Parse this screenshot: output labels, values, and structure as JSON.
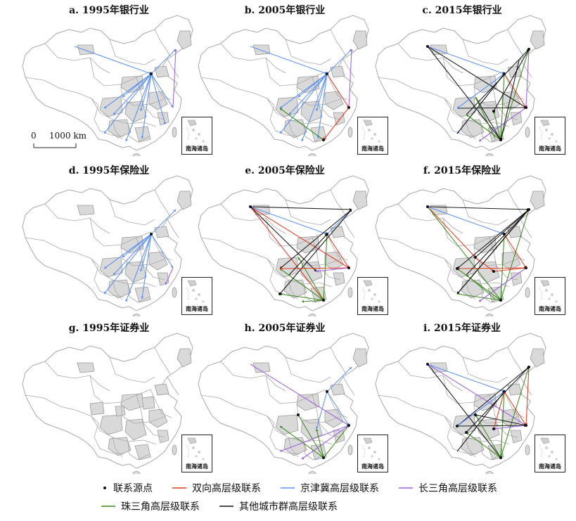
{
  "panels": [
    {
      "title": "a. 1995年银行业",
      "inset_label": "南海诸岛",
      "edges": [
        {
          "type": "beijing",
          "from": "urumqi",
          "to": "beijing"
        },
        {
          "type": "beijing",
          "from": "beijing",
          "to": "harbin"
        },
        {
          "type": "beijing",
          "from": "beijing",
          "to": "shanghai"
        },
        {
          "type": "beijing",
          "from": "beijing",
          "to": "guangzhou"
        },
        {
          "type": "beijing",
          "from": "beijing",
          "to": "chengdu"
        },
        {
          "type": "beijing",
          "from": "beijing",
          "to": "wuhan"
        },
        {
          "type": "beijing",
          "from": "beijing",
          "to": "xian"
        },
        {
          "type": "beijing",
          "from": "beijing",
          "to": "kunming"
        },
        {
          "type": "beijing",
          "from": "beijing",
          "to": "chongqing"
        },
        {
          "type": "beijing",
          "from": "beijing",
          "to": "nanning"
        },
        {
          "type": "beijing",
          "from": "beijing",
          "to": "fuzhou"
        },
        {
          "type": "yangtze",
          "from": "shanghai",
          "to": "harbin"
        }
      ],
      "sources": [
        "beijing"
      ]
    },
    {
      "title": "b. 2005年银行业",
      "inset_label": "南海诸岛",
      "edges": [
        {
          "type": "beijing",
          "from": "urumqi",
          "to": "beijing"
        },
        {
          "type": "beijing",
          "from": "beijing",
          "to": "harbin"
        },
        {
          "type": "bidirectional",
          "from": "beijing",
          "to": "shanghai"
        },
        {
          "type": "beijing",
          "from": "beijing",
          "to": "guangzhou"
        },
        {
          "type": "beijing",
          "from": "beijing",
          "to": "chengdu"
        },
        {
          "type": "beijing",
          "from": "beijing",
          "to": "wuhan"
        },
        {
          "type": "beijing",
          "from": "beijing",
          "to": "kunming"
        },
        {
          "type": "beijing",
          "from": "beijing",
          "to": "chongqing"
        },
        {
          "type": "beijing",
          "from": "beijing",
          "to": "nanning"
        },
        {
          "type": "beijing",
          "from": "beijing",
          "to": "xian"
        },
        {
          "type": "bidirectional",
          "from": "shanghai",
          "to": "shenzhen"
        },
        {
          "type": "pearl",
          "from": "shenzhen",
          "to": "chengdu"
        },
        {
          "type": "yangtze",
          "from": "shanghai",
          "to": "harbin"
        }
      ],
      "sources": [
        "beijing",
        "shanghai",
        "shenzhen"
      ]
    },
    {
      "title": "c. 2015年银行业",
      "inset_label": "南海诸岛",
      "edges": [
        {
          "type": "other",
          "from": "urumqi",
          "to": "shanghai"
        },
        {
          "type": "beijing",
          "from": "urumqi",
          "to": "beijing"
        },
        {
          "type": "other",
          "from": "urumqi",
          "to": "shenzhen"
        },
        {
          "type": "yangtze",
          "from": "harbin",
          "to": "shanghai"
        },
        {
          "type": "pearl",
          "from": "harbin",
          "to": "shenzhen"
        },
        {
          "type": "beijing",
          "from": "beijing",
          "to": "kunming"
        },
        {
          "type": "bidirectional",
          "from": "beijing",
          "to": "shanghai"
        },
        {
          "type": "pearl",
          "from": "beijing",
          "to": "shenzhen"
        },
        {
          "type": "other",
          "from": "chengdu",
          "to": "shanghai"
        },
        {
          "type": "other",
          "from": "chongqing",
          "to": "harbin"
        },
        {
          "type": "other",
          "from": "xian",
          "to": "shenzhen"
        },
        {
          "type": "pearl",
          "from": "shenzhen",
          "to": "wuhan"
        },
        {
          "type": "other",
          "from": "kunming",
          "to": "beijing"
        },
        {
          "type": "yangtze",
          "from": "shanghai",
          "to": "nanning"
        },
        {
          "type": "pearl",
          "from": "guangzhou",
          "to": "xian"
        },
        {
          "type": "other",
          "from": "shenyang",
          "to": "shenzhen"
        },
        {
          "type": "other",
          "from": "wuhan",
          "to": "harbin"
        },
        {
          "type": "beijing",
          "from": "beijing",
          "to": "chengdu"
        },
        {
          "type": "pearl",
          "from": "shenzhen",
          "to": "chongqing"
        }
      ],
      "sources": [
        "urumqi",
        "beijing",
        "shanghai",
        "shenzhen",
        "harbin",
        "wuhan"
      ]
    },
    {
      "title": "d. 1995年保险业",
      "inset_label": "南海诸岛",
      "edges": [
        {
          "type": "beijing",
          "from": "beijing",
          "to": "harbin"
        },
        {
          "type": "beijing",
          "from": "beijing",
          "to": "shanghai"
        },
        {
          "type": "beijing",
          "from": "beijing",
          "to": "guangzhou"
        },
        {
          "type": "beijing",
          "from": "beijing",
          "to": "chengdu"
        },
        {
          "type": "beijing",
          "from": "beijing",
          "to": "wuhan"
        },
        {
          "type": "beijing",
          "from": "beijing",
          "to": "kunming"
        },
        {
          "type": "beijing",
          "from": "beijing",
          "to": "chongqing"
        },
        {
          "type": "beijing",
          "from": "beijing",
          "to": "nanning"
        },
        {
          "type": "beijing",
          "from": "beijing",
          "to": "xian"
        },
        {
          "type": "yangtze",
          "from": "shanghai",
          "to": "fuzhou"
        }
      ],
      "sources": [
        "beijing"
      ]
    },
    {
      "title": "e. 2005年保险业",
      "inset_label": "南海诸岛",
      "edges": [
        {
          "type": "other",
          "from": "urumqi",
          "to": "harbin"
        },
        {
          "type": "bidirectional",
          "from": "urumqi",
          "to": "shanghai"
        },
        {
          "type": "bidirectional",
          "from": "urumqi",
          "to": "shenzhen"
        },
        {
          "type": "beijing",
          "from": "urumqi",
          "to": "beijing"
        },
        {
          "type": "other",
          "from": "urumqi",
          "to": "wuhan"
        },
        {
          "type": "beijing",
          "from": "beijing",
          "to": "harbin"
        },
        {
          "type": "bidirectional",
          "from": "beijing",
          "to": "shanghai"
        },
        {
          "type": "pearl",
          "from": "beijing",
          "to": "shenzhen"
        },
        {
          "type": "other",
          "from": "harbin",
          "to": "chengdu"
        },
        {
          "type": "pearl",
          "from": "shenzhen",
          "to": "chengdu"
        },
        {
          "type": "other",
          "from": "kunming",
          "to": "harbin"
        },
        {
          "type": "pearl",
          "from": "shenzhen",
          "to": "xian"
        },
        {
          "type": "bidirectional",
          "from": "shanghai",
          "to": "chengdu"
        },
        {
          "type": "pearl",
          "from": "shenzhen",
          "to": "nanning"
        },
        {
          "type": "yangtze",
          "from": "shanghai",
          "to": "wuhan"
        },
        {
          "type": "other",
          "from": "chongqing",
          "to": "beijing"
        },
        {
          "type": "pearl",
          "from": "shenzhen",
          "to": "kunming"
        }
      ],
      "sources": [
        "urumqi",
        "beijing",
        "shanghai",
        "shenzhen",
        "kunming"
      ]
    },
    {
      "title": "f. 2015年保险业",
      "inset_label": "南海诸岛",
      "edges": [
        {
          "type": "other",
          "from": "urumqi",
          "to": "harbin"
        },
        {
          "type": "bidirectional",
          "from": "urumqi",
          "to": "xian"
        },
        {
          "type": "pearl",
          "from": "urumqi",
          "to": "shenzhen"
        },
        {
          "type": "beijing",
          "from": "urumqi",
          "to": "beijing"
        },
        {
          "type": "other",
          "from": "harbin",
          "to": "chengdu"
        },
        {
          "type": "other",
          "from": "harbin",
          "to": "kunming"
        },
        {
          "type": "pearl",
          "from": "harbin",
          "to": "shenzhen"
        },
        {
          "type": "bidirectional",
          "from": "beijing",
          "to": "shanghai"
        },
        {
          "type": "pearl",
          "from": "beijing",
          "to": "shenzhen"
        },
        {
          "type": "bidirectional",
          "from": "chengdu",
          "to": "shanghai"
        },
        {
          "type": "other",
          "from": "chongqing",
          "to": "harbin"
        },
        {
          "type": "pearl",
          "from": "shenzhen",
          "to": "chengdu"
        },
        {
          "type": "bidirectional",
          "from": "wuhan",
          "to": "shanghai"
        },
        {
          "type": "pearl",
          "from": "kunming",
          "to": "shenzhen"
        },
        {
          "type": "yangtze",
          "from": "shanghai",
          "to": "nanning"
        },
        {
          "type": "other",
          "from": "xian",
          "to": "harbin"
        },
        {
          "type": "bidirectional",
          "from": "xian",
          "to": "wuhan"
        },
        {
          "type": "pearl",
          "from": "guangzhou",
          "to": "chongqing"
        },
        {
          "type": "other",
          "from": "shenyang",
          "to": "kunming"
        }
      ],
      "sources": [
        "urumqi",
        "harbin",
        "beijing",
        "shanghai",
        "shenzhen",
        "xian",
        "wuhan",
        "chengdu"
      ]
    },
    {
      "title": "g. 1995年证券业",
      "inset_label": "南海诸岛",
      "edges": [],
      "sources": []
    },
    {
      "title": "h. 2005年证券业",
      "inset_label": "南海诸岛",
      "edges": [
        {
          "type": "yangtze",
          "from": "urumqi",
          "to": "shanghai"
        },
        {
          "type": "beijing",
          "from": "beijing",
          "to": "harbin"
        },
        {
          "type": "beijing",
          "from": "beijing",
          "to": "shanghai"
        },
        {
          "type": "pearl",
          "from": "xian",
          "to": "shenzhen"
        },
        {
          "type": "pearl",
          "from": "shenzhen",
          "to": "shanghai"
        },
        {
          "type": "pearl",
          "from": "shenzhen",
          "to": "chengdu"
        },
        {
          "type": "yangtze",
          "from": "shanghai",
          "to": "nanning"
        },
        {
          "type": "yangtze",
          "from": "shanghai",
          "to": "kunming"
        },
        {
          "type": "beijing",
          "from": "beijing",
          "to": "wuhan"
        },
        {
          "type": "pearl",
          "from": "shenzhen",
          "to": "wuhan"
        }
      ],
      "sources": [
        "beijing",
        "shanghai",
        "shenzhen",
        "xian"
      ]
    },
    {
      "title": "i. 2015年证券业",
      "inset_label": "南海诸岛",
      "edges": [
        {
          "type": "beijing",
          "from": "urumqi",
          "to": "beijing"
        },
        {
          "type": "other",
          "from": "urumqi",
          "to": "shenzhen"
        },
        {
          "type": "yangtze",
          "from": "urumqi",
          "to": "shanghai"
        },
        {
          "type": "bidirectional",
          "from": "harbin",
          "to": "shanghai"
        },
        {
          "type": "other",
          "from": "harbin",
          "to": "chengdu"
        },
        {
          "type": "pearl",
          "from": "harbin",
          "to": "shenzhen"
        },
        {
          "type": "bidirectional",
          "from": "beijing",
          "to": "shanghai"
        },
        {
          "type": "pearl",
          "from": "beijing",
          "to": "shenzhen"
        },
        {
          "type": "other",
          "from": "chengdu",
          "to": "shanghai"
        },
        {
          "type": "other",
          "from": "kunming",
          "to": "beijing"
        },
        {
          "type": "pearl",
          "from": "shenzhen",
          "to": "chongqing"
        },
        {
          "type": "yangtze",
          "from": "shanghai",
          "to": "wuhan"
        },
        {
          "type": "other",
          "from": "xian",
          "to": "shanghai"
        },
        {
          "type": "pearl",
          "from": "shenzhen",
          "to": "xian"
        },
        {
          "type": "beijing",
          "from": "beijing",
          "to": "chengdu"
        },
        {
          "type": "other",
          "from": "chongqing",
          "to": "harbin"
        },
        {
          "type": "bidirectional",
          "from": "wuhan",
          "to": "beijing"
        }
      ],
      "sources": [
        "urumqi",
        "harbin",
        "beijing",
        "shanghai",
        "shenzhen",
        "xian",
        "chengdu",
        "chongqing",
        "wuhan"
      ]
    }
  ],
  "scalebar": {
    "zero": "0",
    "distance": "1000 km"
  },
  "legend": {
    "source_label": "联系源点",
    "items": [
      {
        "key": "bidirectional",
        "label": "双向高层级联系",
        "color": "#e2391f"
      },
      {
        "key": "beijing",
        "label": "京津冀高层级联系",
        "color": "#5b8ff0"
      },
      {
        "key": "yangtze",
        "label": "长三角高层级联系",
        "color": "#9d5fe0"
      },
      {
        "key": "pearl",
        "label": "珠三角高层级联系",
        "color": "#3d8a1e"
      },
      {
        "key": "other",
        "label": "其他城市群高层级联系",
        "color": "#111111"
      }
    ]
  },
  "colors": {
    "province_fill": "#d9d9d9",
    "province_stroke": "#9a9a9a",
    "map_stroke": "#a8a8a8",
    "source_dot": "#111111"
  }
}
